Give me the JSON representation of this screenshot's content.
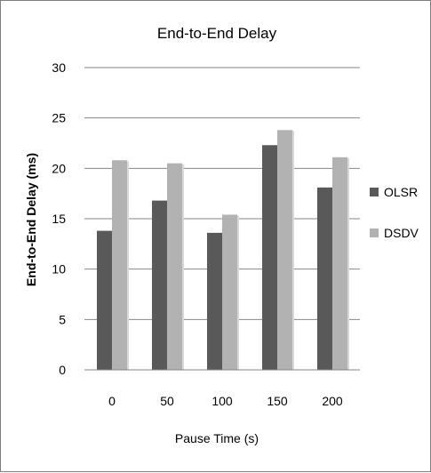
{
  "chart_data": {
    "type": "bar",
    "title": "End-to-End Delay",
    "xlabel": "Pause Time (s)",
    "ylabel": "End-to-End Delay (ms)",
    "categories": [
      "0",
      "50",
      "100",
      "150",
      "200"
    ],
    "series": [
      {
        "name": "OLSR",
        "values": [
          13.8,
          16.8,
          13.6,
          22.3,
          18.1
        ],
        "color": "#595959"
      },
      {
        "name": "DSDV",
        "values": [
          20.8,
          20.5,
          15.4,
          23.8,
          21.1
        ],
        "color": "#b2b2b2"
      }
    ],
    "ylim": [
      0,
      30
    ],
    "yticks": [
      "0",
      "5",
      "10",
      "15",
      "20",
      "25",
      "30"
    ],
    "grid": true,
    "legend": "right"
  }
}
